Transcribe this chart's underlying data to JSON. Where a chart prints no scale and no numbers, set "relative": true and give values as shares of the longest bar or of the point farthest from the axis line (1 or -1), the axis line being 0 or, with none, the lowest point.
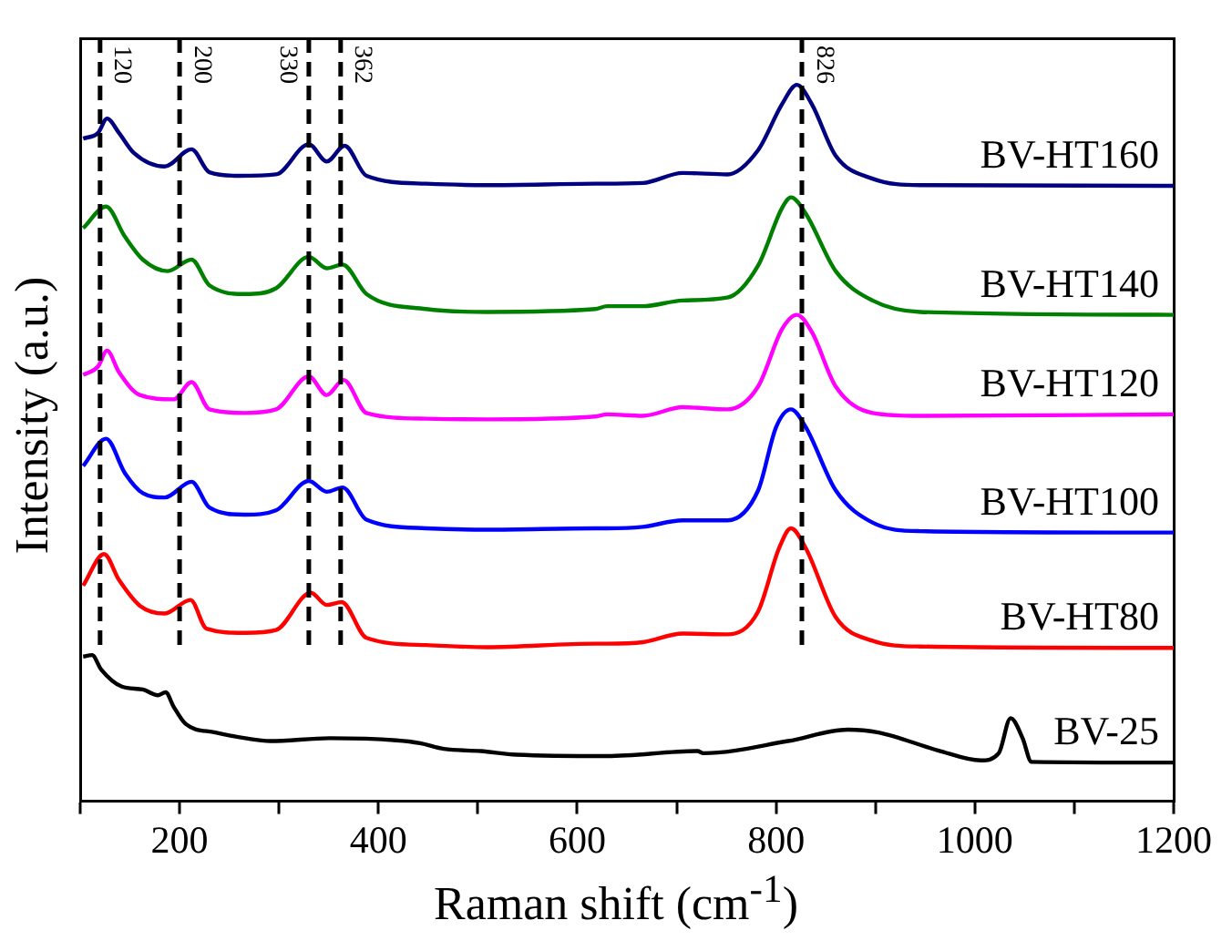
{
  "chart_data": {
    "type": "line",
    "relative": true,
    "xlabel": "Raman shift (cm$^{-1}$)",
    "ylabel": "Intensity (a.u.)",
    "legend": false,
    "grid": false,
    "marker": "none",
    "line_style": "solid",
    "xlim": [
      100,
      1200
    ],
    "xticks": [
      {
        "value": 100,
        "label": null
      },
      200,
      {
        "value": 300,
        "label": null
      },
      400,
      {
        "value": 500,
        "label": null
      },
      600,
      {
        "value": 700,
        "label": null
      },
      800,
      {
        "value": 900,
        "label": null
      },
      1000,
      {
        "value": 1100,
        "label": null
      },
      1200
    ],
    "ref_lines": [
      {
        "axis": "x",
        "value": 120,
        "label": "120",
        "line_style": "dashed",
        "color": "#000000"
      },
      {
        "axis": "x",
        "value": 200,
        "label": "200",
        "line_style": "dashed",
        "color": "#000000"
      },
      {
        "axis": "x",
        "value": 330,
        "label": "330",
        "line_style": "dashed",
        "color": "#000000"
      },
      {
        "axis": "x",
        "value": 362,
        "label": "362",
        "line_style": "dashed",
        "color": "#000000"
      },
      {
        "axis": "x",
        "value": 826,
        "label": "826",
        "line_style": "dashed",
        "color": "#000000"
      }
    ],
    "series": [
      {
        "name": "BV-HT160",
        "color": "#000080",
        "x": [
          103,
          118,
          127,
          139,
          154,
          185,
          212,
          230,
          260,
          297,
          330,
          348,
          366,
          388,
          448,
          509,
          618,
          666,
          706,
          751,
          782,
          806,
          821,
          836,
          860,
          897,
          945,
          1200
        ],
        "values": [
          0.925,
          0.933,
          0.953,
          0.933,
          0.905,
          0.886,
          0.91,
          0.878,
          0.873,
          0.875,
          0.917,
          0.893,
          0.915,
          0.873,
          0.862,
          0.86,
          0.862,
          0.863,
          0.877,
          0.875,
          0.909,
          0.973,
          1.0,
          0.973,
          0.901,
          0.869,
          0.86,
          0.859
        ]
      },
      {
        "name": "BV-HT140",
        "color": "#008000",
        "x": [
          103,
          126,
          145,
          163,
          188,
          212,
          230,
          266,
          297,
          330,
          348,
          364,
          388,
          448,
          509,
          618,
          630,
          666,
          706,
          751,
          782,
          806,
          815,
          830,
          860,
          897,
          945,
          1200
        ],
        "values": [
          0.8,
          0.83,
          0.788,
          0.756,
          0.74,
          0.756,
          0.72,
          0.708,
          0.716,
          0.76,
          0.744,
          0.749,
          0.708,
          0.687,
          0.683,
          0.687,
          0.691,
          0.691,
          0.699,
          0.703,
          0.748,
          0.828,
          0.843,
          0.82,
          0.74,
          0.699,
          0.683,
          0.679
        ]
      },
      {
        "name": "BV-HT120",
        "color": "#ff00ff",
        "x": [
          103,
          118,
          127,
          139,
          160,
          194,
          212,
          230,
          266,
          297,
          330,
          348,
          365,
          388,
          448,
          509,
          618,
          630,
          666,
          706,
          751,
          782,
          806,
          821,
          836,
          860,
          897,
          945,
          1200
        ],
        "values": [
          0.595,
          0.607,
          0.629,
          0.599,
          0.567,
          0.561,
          0.585,
          0.547,
          0.542,
          0.547,
          0.593,
          0.567,
          0.588,
          0.542,
          0.534,
          0.533,
          0.537,
          0.54,
          0.538,
          0.55,
          0.547,
          0.579,
          0.659,
          0.679,
          0.655,
          0.579,
          0.542,
          0.538,
          0.54
        ]
      },
      {
        "name": "BV-HT100",
        "color": "#0000ff",
        "x": [
          103,
          126,
          145,
          163,
          185,
          212,
          230,
          266,
          297,
          330,
          348,
          364,
          388,
          448,
          509,
          618,
          630,
          666,
          706,
          751,
          782,
          800,
          815,
          830,
          860,
          897,
          945,
          1200
        ],
        "values": [
          0.468,
          0.506,
          0.458,
          0.43,
          0.424,
          0.446,
          0.41,
          0.4,
          0.406,
          0.447,
          0.432,
          0.438,
          0.393,
          0.381,
          0.379,
          0.381,
          0.381,
          0.383,
          0.392,
          0.392,
          0.434,
          0.522,
          0.547,
          0.522,
          0.434,
          0.389,
          0.377,
          0.375
        ]
      },
      {
        "name": "BV-HT80",
        "color": "#ff0000",
        "x": [
          103,
          124,
          139,
          160,
          185,
          211,
          227,
          266,
          297,
          332,
          348,
          363,
          388,
          448,
          509,
          618,
          630,
          666,
          706,
          751,
          782,
          803,
          815,
          830,
          860,
          897,
          945,
          1200
        ],
        "values": [
          0.301,
          0.345,
          0.309,
          0.273,
          0.262,
          0.281,
          0.241,
          0.235,
          0.239,
          0.291,
          0.274,
          0.278,
          0.228,
          0.218,
          0.215,
          0.22,
          0.22,
          0.222,
          0.234,
          0.233,
          0.265,
          0.353,
          0.381,
          0.353,
          0.257,
          0.224,
          0.216,
          0.214
        ]
      },
      {
        "name": "BV-25",
        "color": "#000000",
        "x": [
          103,
          112,
          121,
          142,
          163,
          178,
          186,
          194,
          206,
          236,
          266,
          291,
          351,
          418,
          442,
          466,
          503,
          539,
          630,
          721,
          727,
          812,
          872,
          903,
          963,
          1006,
          1024,
          1036,
          1048,
          1057,
          1200
        ],
        "values": [
          0.202,
          0.204,
          0.184,
          0.16,
          0.156,
          0.148,
          0.152,
          0.132,
          0.108,
          0.096,
          0.088,
          0.084,
          0.088,
          0.085,
          0.081,
          0.073,
          0.07,
          0.065,
          0.063,
          0.07,
          0.067,
          0.084,
          0.1,
          0.096,
          0.071,
          0.057,
          0.067,
          0.116,
          0.088,
          0.055,
          0.054
        ]
      }
    ]
  }
}
